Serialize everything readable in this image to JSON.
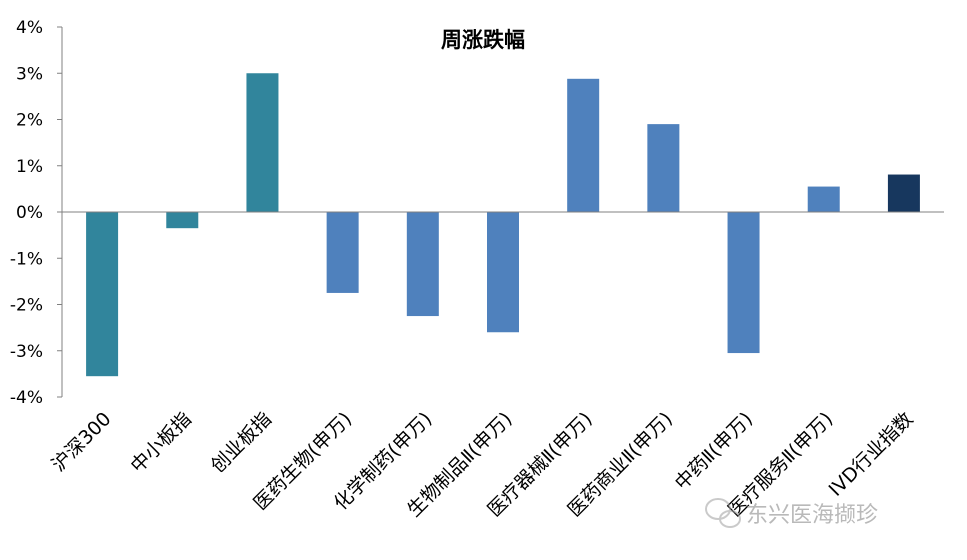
{
  "chart_data": {
    "type": "bar",
    "title": "周涨跌幅",
    "xlabel": "",
    "ylabel": "",
    "ylim": [
      -0.04,
      0.04
    ],
    "yticks": [
      0.04,
      0.03,
      0.02,
      0.01,
      0.0,
      -0.01,
      -0.02,
      -0.03,
      -0.04
    ],
    "ytick_labels": [
      "4%",
      "3%",
      "2%",
      "1%",
      "0%",
      "-1%",
      "-2%",
      "-3%",
      "-4%"
    ],
    "categories": [
      "沪深300",
      "中小板指",
      "创业板指",
      "医药生物(申万)",
      "化学制药(申万)",
      "生物制品Ⅱ(申万)",
      "医疗器械Ⅱ(申万)",
      "医药商业Ⅱ(申万)",
      "中药Ⅱ(申万)",
      "医疗服务Ⅱ(申万)",
      "IVD行业指数"
    ],
    "values": [
      -0.0355,
      -0.0035,
      0.03,
      -0.0175,
      -0.0225,
      -0.026,
      0.0288,
      0.019,
      -0.0305,
      0.0055,
      0.0081
    ],
    "colors": [
      "#31859c",
      "#31859c",
      "#31859c",
      "#4f81bd",
      "#4f81bd",
      "#4f81bd",
      "#4f81bd",
      "#4f81bd",
      "#4f81bd",
      "#4f81bd",
      "#17375e"
    ],
    "grid": false,
    "legend": "none"
  },
  "watermark": {
    "text": "东兴医海撷珍",
    "icon": "wechat-icon"
  }
}
